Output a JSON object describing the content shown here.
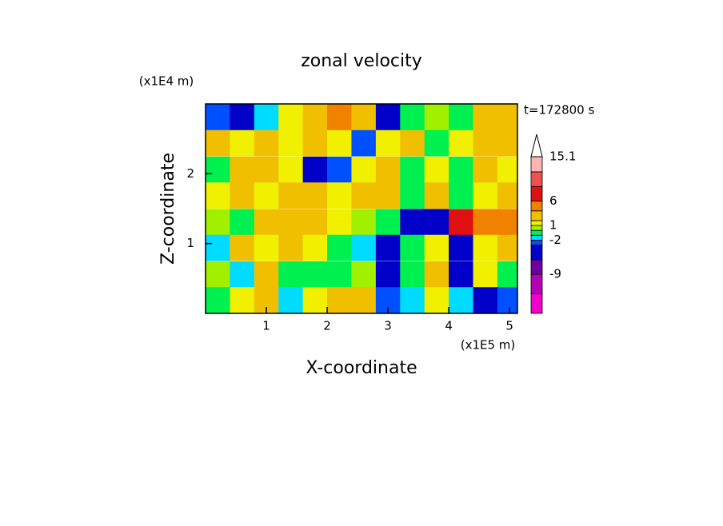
{
  "chart_data": {
    "type": "contour",
    "title": "zonal velocity",
    "x_label": "X-coordinate",
    "y_label": "Z-coordinate",
    "x_unit": "(x1E5 m)",
    "y_unit": "(x1E4 m)",
    "annotation": "t=172800 s",
    "xlim": [
      0,
      5.13
    ],
    "ylim": [
      0,
      3.0
    ],
    "xticks": [
      1,
      2,
      3,
      4,
      5
    ],
    "yticks": [
      1,
      2
    ],
    "x": [
      0.2,
      0.6,
      1.0,
      1.4,
      1.8,
      2.2,
      2.6,
      3.0,
      3.4,
      3.8,
      4.2,
      4.6,
      5.0
    ],
    "y": [
      2.81,
      2.44,
      2.06,
      1.69,
      1.31,
      0.94,
      0.56,
      0.19
    ],
    "values": [
      [
        -2.5,
        -4,
        -1.5,
        1.5,
        2,
        5,
        3,
        -4,
        -1,
        0.5,
        -1,
        2,
        3
      ],
      [
        3,
        1.5,
        3,
        1.5,
        2,
        1,
        -3,
        1.5,
        2,
        -0.5,
        1.5,
        2,
        2.5
      ],
      [
        -0.5,
        3,
        2,
        1.5,
        -4,
        -3,
        1,
        2,
        -0.5,
        1,
        -0.5,
        2,
        1.5
      ],
      [
        1.5,
        3,
        1.5,
        2,
        3,
        1.5,
        3,
        2,
        -0.5,
        3,
        -0.5,
        1.5,
        3
      ],
      [
        0.5,
        -0.5,
        2.5,
        3,
        3,
        1.5,
        0.5,
        -0.5,
        -5,
        -5,
        8,
        5,
        5
      ],
      [
        -1.5,
        3,
        1.5,
        3,
        1.5,
        -1,
        -1.5,
        -4,
        -0.5,
        1,
        -4,
        1.5,
        3
      ],
      [
        0.5,
        -1.5,
        2,
        -1,
        -0.5,
        -1,
        0,
        -4,
        -0.5,
        2,
        -6,
        1.5,
        -0.5
      ],
      [
        -0.5,
        1.5,
        2.5,
        -1.5,
        1.5,
        3,
        3.5,
        -3,
        -1.5,
        1,
        -1.5,
        -5,
        -3
      ]
    ],
    "colorbar": {
      "levels": [
        -17,
        -13,
        -9,
        -6,
        -3,
        -2,
        -1,
        0,
        1,
        2,
        4,
        6,
        9,
        12,
        15.1
      ],
      "colors": [
        "#f000c8",
        "#b400b4",
        "#6e00a0",
        "#0000c8",
        "#0050ff",
        "#00dcff",
        "#00f050",
        "#a0f000",
        "#f0f000",
        "#f0c000",
        "#f08200",
        "#e01010",
        "#f05050",
        "#ffb4b4"
      ],
      "ticks": [
        15.1,
        6,
        1,
        -2,
        -9
      ]
    }
  }
}
